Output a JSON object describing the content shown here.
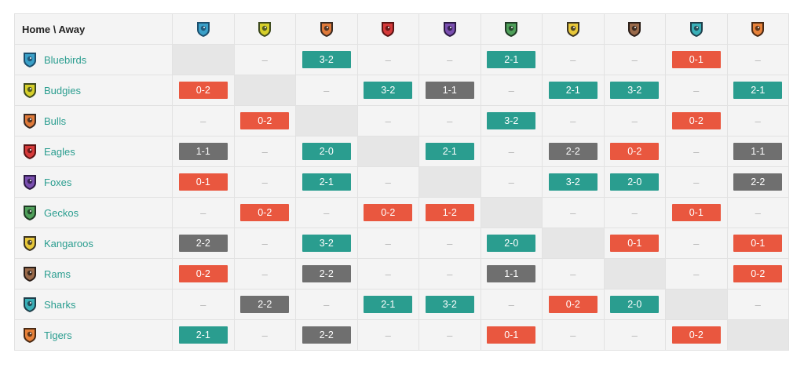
{
  "corner_label": "Home \\ Away",
  "dash": "–",
  "colors": {
    "win": "#2a9d8f",
    "loss": "#e9573f",
    "draw": "#6f6f6f",
    "team_link": "#2a9d8f"
  },
  "teams": [
    {
      "name": "Bluebirds",
      "icon": "bluebird-crest-icon",
      "color": "#3aa0c8",
      "accent": "#1c4f6e"
    },
    {
      "name": "Budgies",
      "icon": "budgie-crest-icon",
      "color": "#d6cf2a",
      "accent": "#3e4a1e"
    },
    {
      "name": "Bulls",
      "icon": "bull-crest-icon",
      "color": "#e07a3a",
      "accent": "#3a2a22"
    },
    {
      "name": "Eagles",
      "icon": "eagle-crest-icon",
      "color": "#d63a3a",
      "accent": "#5a1414"
    },
    {
      "name": "Foxes",
      "icon": "fox-crest-icon",
      "color": "#7a4fb0",
      "accent": "#2c1a44"
    },
    {
      "name": "Geckos",
      "icon": "gecko-crest-icon",
      "color": "#4fa05a",
      "accent": "#1f3a24"
    },
    {
      "name": "Kangaroos",
      "icon": "kangaroo-crest-icon",
      "color": "#e8c83a",
      "accent": "#3a3322"
    },
    {
      "name": "Rams",
      "icon": "ram-crest-icon",
      "color": "#9a6a4a",
      "accent": "#2a1e18"
    },
    {
      "name": "Sharks",
      "icon": "shark-crest-icon",
      "color": "#3ab0b8",
      "accent": "#1e3e4a"
    },
    {
      "name": "Tigers",
      "icon": "tiger-crest-icon",
      "color": "#e8823a",
      "accent": "#4a2a14"
    }
  ],
  "results": [
    [
      "",
      "–",
      "3-2",
      "–",
      "–",
      "2-1",
      "–",
      "–",
      "0-1",
      "–"
    ],
    [
      "0-2",
      "",
      "–",
      "3-2",
      "1-1",
      "–",
      "2-1",
      "3-2",
      "–",
      "2-1"
    ],
    [
      "–",
      "0-2",
      "",
      "–",
      "–",
      "3-2",
      "–",
      "–",
      "0-2",
      "–"
    ],
    [
      "1-1",
      "–",
      "2-0",
      "",
      "2-1",
      "–",
      "2-2",
      "0-2",
      "–",
      "1-1"
    ],
    [
      "0-1",
      "–",
      "2-1",
      "–",
      "",
      "–",
      "3-2",
      "2-0",
      "–",
      "2-2"
    ],
    [
      "–",
      "0-2",
      "–",
      "0-2",
      "1-2",
      "",
      "–",
      "–",
      "0-1",
      "–"
    ],
    [
      "2-2",
      "–",
      "3-2",
      "–",
      "–",
      "2-0",
      "",
      "0-1",
      "–",
      "0-1"
    ],
    [
      "0-2",
      "–",
      "2-2",
      "–",
      "–",
      "1-1",
      "–",
      "",
      "–",
      "0-2"
    ],
    [
      "–",
      "2-2",
      "–",
      "2-1",
      "3-2",
      "–",
      "0-2",
      "2-0",
      "",
      "–"
    ],
    [
      "2-1",
      "–",
      "2-2",
      "–",
      "–",
      "0-1",
      "–",
      "–",
      "0-2",
      ""
    ]
  ]
}
